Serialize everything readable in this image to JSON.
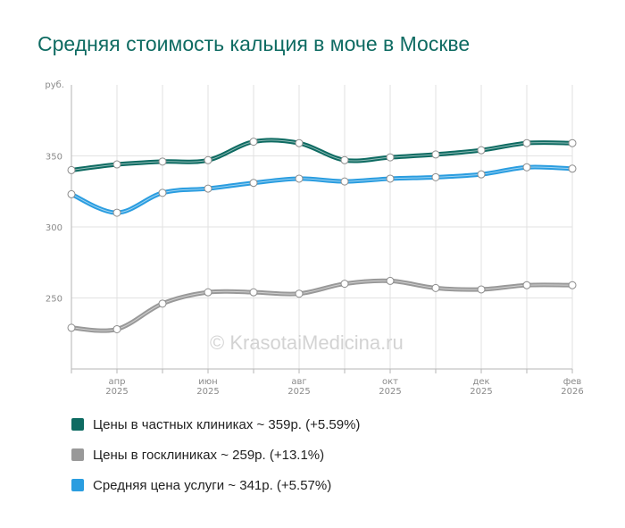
{
  "title": "Средняя стоимость кальция в моче в Москве",
  "watermark": "© KrasotaiMedicina.ru",
  "chart_data": {
    "type": "line",
    "title": "Средняя стоимость кальция в моче в Москве",
    "ylabel": "руб.",
    "ylim": [
      200,
      400
    ],
    "yticks": [
      250,
      300,
      350
    ],
    "xlabels": [
      {
        "index": 1,
        "month": "апр",
        "year": "2025"
      },
      {
        "index": 3,
        "month": "июн",
        "year": "2025"
      },
      {
        "index": 5,
        "month": "авг",
        "year": "2025"
      },
      {
        "index": 7,
        "month": "окт",
        "year": "2025"
      },
      {
        "index": 9,
        "month": "дек",
        "year": "2025"
      },
      {
        "index": 11,
        "month": "фев",
        "year": "2026"
      }
    ],
    "x": [
      "мар 2025",
      "апр 2025",
      "май 2025",
      "июн 2025",
      "июл 2025",
      "авг 2025",
      "сен 2025",
      "окт 2025",
      "ноя 2025",
      "дек 2025",
      "янв 2026",
      "фев 2026"
    ],
    "series": [
      {
        "name": "Цены в частных клиниках",
        "color": "#0e6b62",
        "values": [
          340,
          344,
          346,
          347,
          360,
          359,
          347,
          349,
          351,
          354,
          359,
          359
        ]
      },
      {
        "name": "Цены в госклиниках",
        "color": "#999999",
        "values": [
          229,
          228,
          246,
          254,
          254,
          253,
          260,
          262,
          257,
          256,
          259,
          259
        ]
      },
      {
        "name": "Средняя цена услуги",
        "color": "#2a9de0",
        "values": [
          323,
          310,
          324,
          327,
          331,
          334,
          332,
          334,
          335,
          337,
          342,
          341
        ]
      }
    ]
  },
  "legend": [
    {
      "label": "Цены в частных клиниках ~ 359р. (+5.59%)",
      "color": "#0e6b62"
    },
    {
      "label": "Цены в госклиниках ~ 259р. (+13.1%)",
      "color": "#999999"
    },
    {
      "label": "Средняя цена услуги ~ 341р. (+5.57%)",
      "color": "#2a9de0"
    }
  ]
}
